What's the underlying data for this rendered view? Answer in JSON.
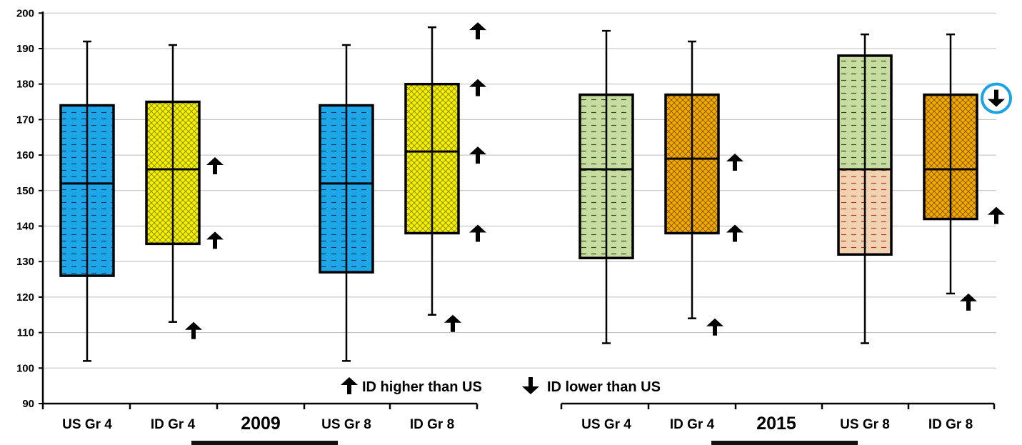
{
  "chart_data": {
    "type": "box",
    "ylim": [
      90,
      200
    ],
    "y_ticks": [
      90,
      100,
      110,
      120,
      130,
      140,
      150,
      160,
      170,
      180,
      190,
      200
    ],
    "grid": "horizontal",
    "colors": {
      "US_2009": "#1ea7e8",
      "ID_2009": "#f4f000",
      "US_2015_upper": "#c6dca0",
      "US_2015_lower_gr8": "#f2d2b0",
      "ID_2015": "#f2a900",
      "highlight_circle": "#1aa3e6",
      "grid": "#bdbdbd"
    },
    "groups": [
      {
        "year": "2009",
        "categories": [
          {
            "label": "US Gr 4",
            "style": "us2009",
            "min": 102,
            "q1": 126,
            "median": 152,
            "q3": 174,
            "max": 192,
            "arrows": []
          },
          {
            "label": "ID Gr 4",
            "style": "id2009",
            "min": 113,
            "q1": 135,
            "median": 156,
            "q3": 175,
            "max": 191,
            "arrows": [
              {
                "dir": "up",
                "value": 157
              },
              {
                "dir": "up",
                "value": 136
              },
              {
                "dir": "up",
                "value": 113
              }
            ]
          },
          {
            "label": "US Gr 8",
            "style": "us2009",
            "min": 102,
            "q1": 127,
            "median": 152,
            "q3": 174,
            "max": 191,
            "arrows": []
          },
          {
            "label": "ID Gr 8",
            "style": "id2009",
            "min": 115,
            "q1": 138,
            "median": 161,
            "q3": 180,
            "max": 196,
            "arrows": [
              {
                "dir": "up",
                "value": 195
              },
              {
                "dir": "up",
                "value": 179
              },
              {
                "dir": "up",
                "value": 160
              },
              {
                "dir": "up",
                "value": 138
              },
              {
                "dir": "up",
                "value": 115
              }
            ]
          }
        ]
      },
      {
        "year": "2015",
        "categories": [
          {
            "label": "US Gr 4",
            "style": "us2015",
            "min": 107,
            "q1": 131,
            "median": 156,
            "q3": 177,
            "max": 195,
            "arrows": []
          },
          {
            "label": "ID Gr 4",
            "style": "id2015",
            "min": 114,
            "q1": 138,
            "median": 159,
            "q3": 177,
            "max": 192,
            "arrows": [
              {
                "dir": "up",
                "value": 158
              },
              {
                "dir": "up",
                "value": 138
              },
              {
                "dir": "up",
                "value": 114
              }
            ]
          },
          {
            "label": "US Gr 8",
            "style": "us2015gr8",
            "min": 107,
            "q1": 132,
            "median": 156,
            "q3": 188,
            "max": 194,
            "arrows": []
          },
          {
            "label": "ID Gr 8",
            "style": "id2015",
            "min": 121,
            "q1": 142,
            "median": 156,
            "q3": 177,
            "max": 194,
            "arrows": [
              {
                "dir": "down",
                "value": 176,
                "circled": true
              },
              {
                "dir": "up",
                "value": 143
              },
              {
                "dir": "up",
                "value": 121
              }
            ]
          }
        ]
      }
    ],
    "legend": {
      "placement": "bottom-center",
      "items": [
        {
          "icon": "up-arrow-icon",
          "label": "ID higher than US"
        },
        {
          "icon": "down-arrow-icon",
          "label": "ID lower than US"
        }
      ]
    }
  }
}
